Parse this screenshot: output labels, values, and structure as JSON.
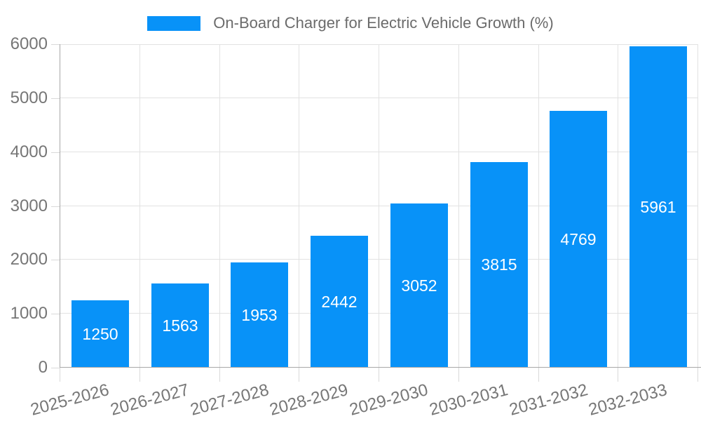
{
  "chart_data": {
    "type": "bar",
    "title": "On-Board Charger for Electric Vehicle Growth (%)",
    "categories": [
      "2025-2026",
      "2026-2027",
      "2027-2028",
      "2028-2029",
      "2029-2030",
      "2030-2031",
      "2031-2032",
      "2032-2033"
    ],
    "values": [
      1250,
      1563,
      1953,
      2442,
      3052,
      3815,
      4769,
      5961
    ],
    "bar_value_labels": [
      "1250",
      "1563",
      "1953",
      "2442",
      "3052",
      "3815",
      "4769",
      "5961"
    ],
    "ylim": [
      0,
      6000
    ],
    "yticks": [
      0,
      1000,
      2000,
      3000,
      4000,
      5000,
      6000
    ],
    "xlabel": "",
    "ylabel": "",
    "grid": true,
    "legend_position": "top-center",
    "x_label_rotation_deg": -15,
    "colors": {
      "bar": "#0892f8",
      "bar_label": "#ffffff",
      "axis_line": "#a8a8a8",
      "gridline": "#e2e2e2",
      "tick": "#d9d9d9",
      "tick_label": "#767676",
      "title": "#6b6b6b",
      "background": "#ffffff"
    }
  }
}
